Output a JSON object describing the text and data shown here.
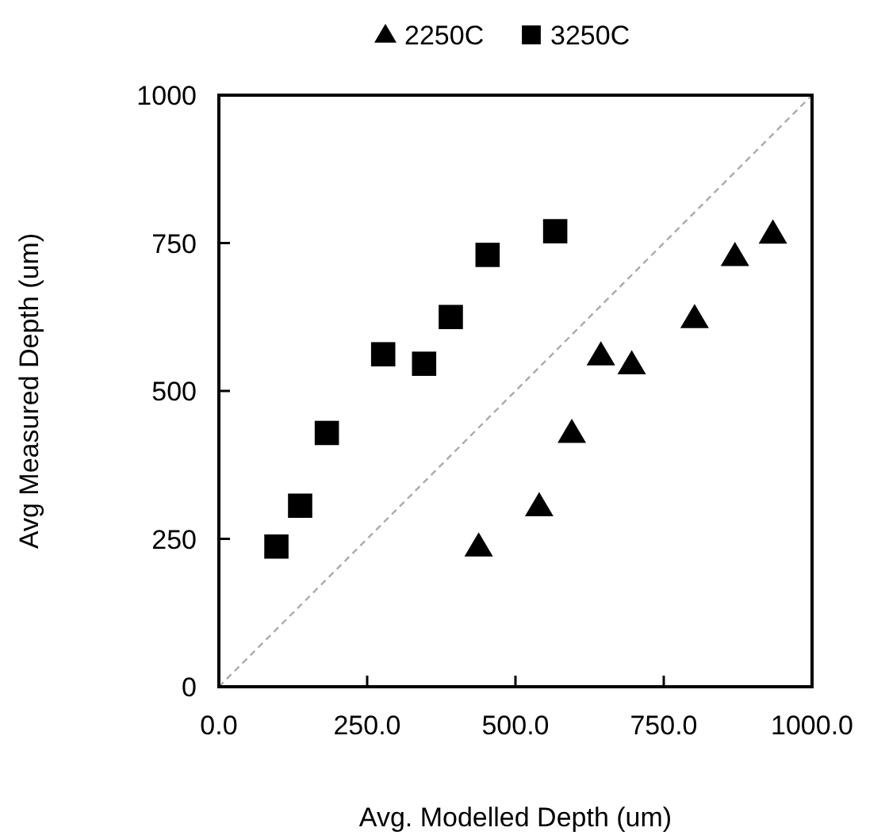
{
  "chart_data": {
    "type": "scatter",
    "xlabel": "Avg. Modelled Depth (um)",
    "ylabel": "Avg Measured Depth (um)",
    "xlim": [
      0,
      1000
    ],
    "ylim": [
      0,
      1000
    ],
    "xticks": [
      {
        "value": 0,
        "label": "0.0"
      },
      {
        "value": 250,
        "label": "250.0"
      },
      {
        "value": 500,
        "label": "500.0"
      },
      {
        "value": 750,
        "label": "750.0"
      },
      {
        "value": 1000,
        "label": "1000.0"
      }
    ],
    "yticks": [
      0,
      250,
      500,
      750,
      1000
    ],
    "grid": false,
    "legend": "top",
    "series": [
      {
        "name": "2250C",
        "color": "#000000",
        "marker": "triangle",
        "x": [
          438,
          540,
          595,
          644,
          696,
          802,
          870,
          934
        ],
        "values": [
          237,
          305,
          429,
          560,
          545,
          623,
          728,
          766
        ]
      },
      {
        "name": "3250C",
        "color": "#000000",
        "marker": "square",
        "x": [
          97,
          137,
          182,
          277,
          346,
          391,
          453,
          567
        ],
        "values": [
          237,
          306,
          429,
          562,
          546,
          625,
          730,
          770
        ]
      },
      {
        "type": "line",
        "color": "#aaaaaa",
        "line_style": "dashed",
        "x": [
          0,
          1000
        ],
        "values": [
          0,
          1000
        ]
      }
    ]
  }
}
